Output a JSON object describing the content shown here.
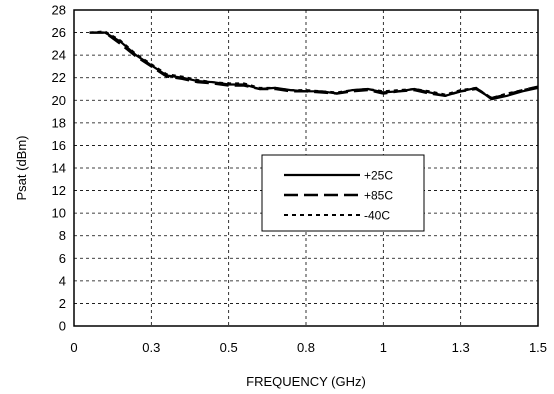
{
  "chart_data": {
    "type": "line",
    "title": "",
    "xlabel": "FREQUENCY (GHz)",
    "ylabel": "Psat (dBm)",
    "xlim": [
      0,
      1.5
    ],
    "ylim": [
      0,
      28
    ],
    "x_ticks": [
      0,
      0.25,
      0.5,
      0.75,
      1.0,
      1.25,
      1.5
    ],
    "x_tick_labels": [
      "0",
      "0.3",
      "0.5",
      "0.8",
      "1",
      "1.3",
      "1.5"
    ],
    "y_ticks": [
      0,
      2,
      4,
      6,
      8,
      10,
      12,
      14,
      16,
      18,
      20,
      22,
      24,
      26,
      28
    ],
    "y_tick_labels": [
      "0",
      "2",
      "4",
      "6",
      "8",
      "10",
      "12",
      "14",
      "16",
      "18",
      "20",
      "22",
      "24",
      "26",
      "28"
    ],
    "grid": true,
    "legend_position": "center-right",
    "series": [
      {
        "name": "+25C",
        "style": "solid",
        "x": [
          0.05,
          0.1,
          0.15,
          0.2,
          0.25,
          0.3,
          0.35,
          0.4,
          0.45,
          0.5,
          0.55,
          0.6,
          0.65,
          0.7,
          0.75,
          0.8,
          0.85,
          0.9,
          0.95,
          1.0,
          1.05,
          1.1,
          1.15,
          1.2,
          1.25,
          1.3,
          1.35,
          1.4,
          1.45,
          1.5
        ],
        "y": [
          26.0,
          26.0,
          25.2,
          24.0,
          23.1,
          22.2,
          22.0,
          21.7,
          21.6,
          21.4,
          21.4,
          21.0,
          21.1,
          20.9,
          20.8,
          20.8,
          20.6,
          20.9,
          21.0,
          20.7,
          20.8,
          21.0,
          20.7,
          20.4,
          20.8,
          21.1,
          20.1,
          20.4,
          20.8,
          21.1
        ]
      },
      {
        "name": "+85C",
        "style": "dashed",
        "x": [
          0.05,
          0.1,
          0.15,
          0.2,
          0.25,
          0.3,
          0.35,
          0.4,
          0.45,
          0.5,
          0.55,
          0.6,
          0.65,
          0.7,
          0.75,
          0.8,
          0.85,
          0.9,
          0.95,
          1.0,
          1.05,
          1.1,
          1.15,
          1.2,
          1.25,
          1.3,
          1.35,
          1.4,
          1.45,
          1.5
        ],
        "y": [
          26.0,
          26.0,
          25.0,
          23.9,
          23.0,
          22.1,
          21.9,
          21.6,
          21.5,
          21.3,
          21.3,
          21.0,
          21.0,
          20.8,
          20.8,
          20.7,
          20.6,
          20.8,
          20.9,
          20.6,
          20.8,
          20.9,
          20.6,
          20.4,
          20.8,
          21.0,
          20.2,
          20.5,
          20.9,
          21.2
        ]
      },
      {
        "name": "-40C",
        "style": "dotted",
        "x": [
          0.05,
          0.1,
          0.15,
          0.2,
          0.25,
          0.3,
          0.35,
          0.4,
          0.45,
          0.5,
          0.55,
          0.6,
          0.65,
          0.7,
          0.75,
          0.8,
          0.85,
          0.9,
          0.95,
          1.0,
          1.05,
          1.1,
          1.15,
          1.2,
          1.25,
          1.3,
          1.35,
          1.4,
          1.45,
          1.5
        ],
        "y": [
          26.0,
          26.1,
          25.3,
          24.1,
          23.2,
          22.3,
          22.1,
          21.8,
          21.6,
          21.5,
          21.5,
          21.1,
          21.1,
          20.9,
          20.9,
          20.8,
          20.7,
          20.9,
          21.0,
          20.8,
          20.9,
          21.0,
          20.8,
          20.5,
          20.9,
          21.1,
          20.2,
          20.6,
          20.9,
          21.2
        ]
      }
    ]
  }
}
